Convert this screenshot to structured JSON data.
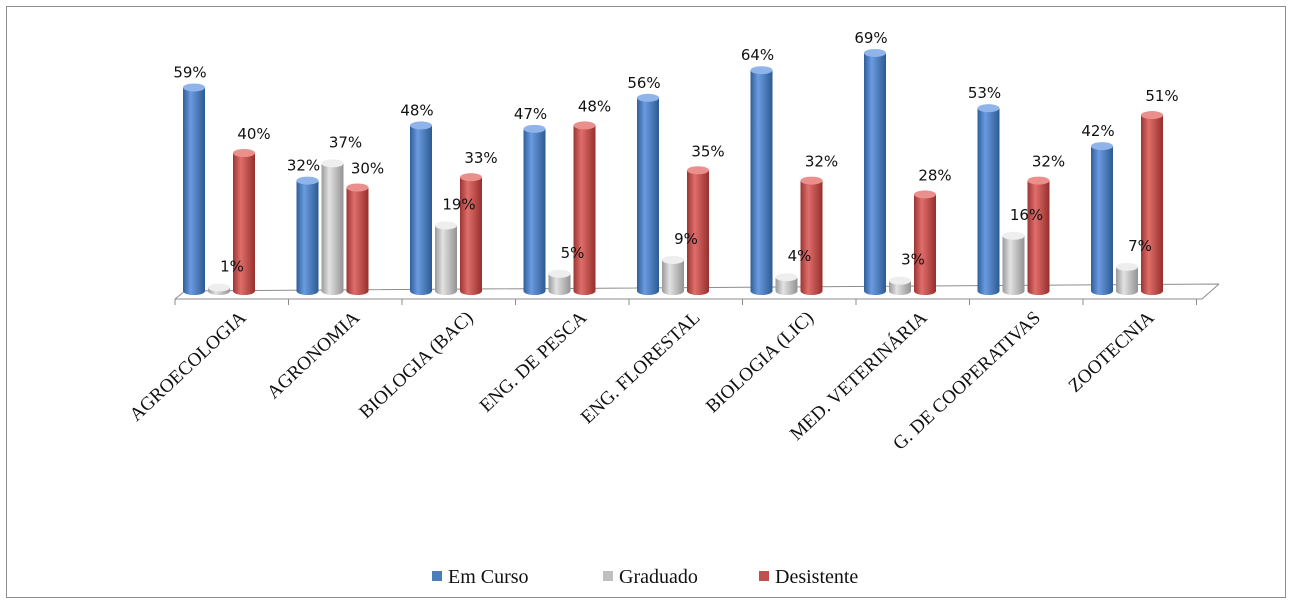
{
  "chart_data": {
    "type": "bar",
    "categories": [
      "AGROECOLOGIA",
      "AGRONOMIA",
      "BIOLOGIA (BAC)",
      "ENG. DE PESCA",
      "ENG. FLORESTAL",
      "BIOLOGIA (LIC)",
      "MED. VETERINÁRIA",
      "G. DE COOPERATIVAS",
      "ZOOTECNIA"
    ],
    "series": [
      {
        "name": "Em Curso",
        "color": "#4a7ebb",
        "values": [
          59,
          32,
          48,
          47,
          56,
          64,
          69,
          53,
          42
        ],
        "labels": [
          "59%",
          "32%",
          "48%",
          "47%",
          "56%",
          "64%",
          "69%",
          "53%",
          "42%"
        ]
      },
      {
        "name": "Graduado",
        "color": "#bfbfbf",
        "values": [
          1,
          37,
          19,
          5,
          9,
          4,
          3,
          16,
          7
        ],
        "labels": [
          "1%",
          "37%",
          "19%",
          "5%",
          "9%",
          "4%",
          "3%",
          "16%",
          "7%"
        ]
      },
      {
        "name": "Desistente",
        "color": "#c0504d",
        "values": [
          40,
          30,
          33,
          48,
          35,
          32,
          28,
          32,
          51
        ],
        "labels": [
          "40%",
          "30%",
          "33%",
          "48%",
          "35%",
          "32%",
          "28%",
          "32%",
          "51%"
        ]
      }
    ],
    "ylim": [
      0,
      100
    ],
    "grid": false,
    "legend": "bottom",
    "style": "3d-cylinder"
  }
}
